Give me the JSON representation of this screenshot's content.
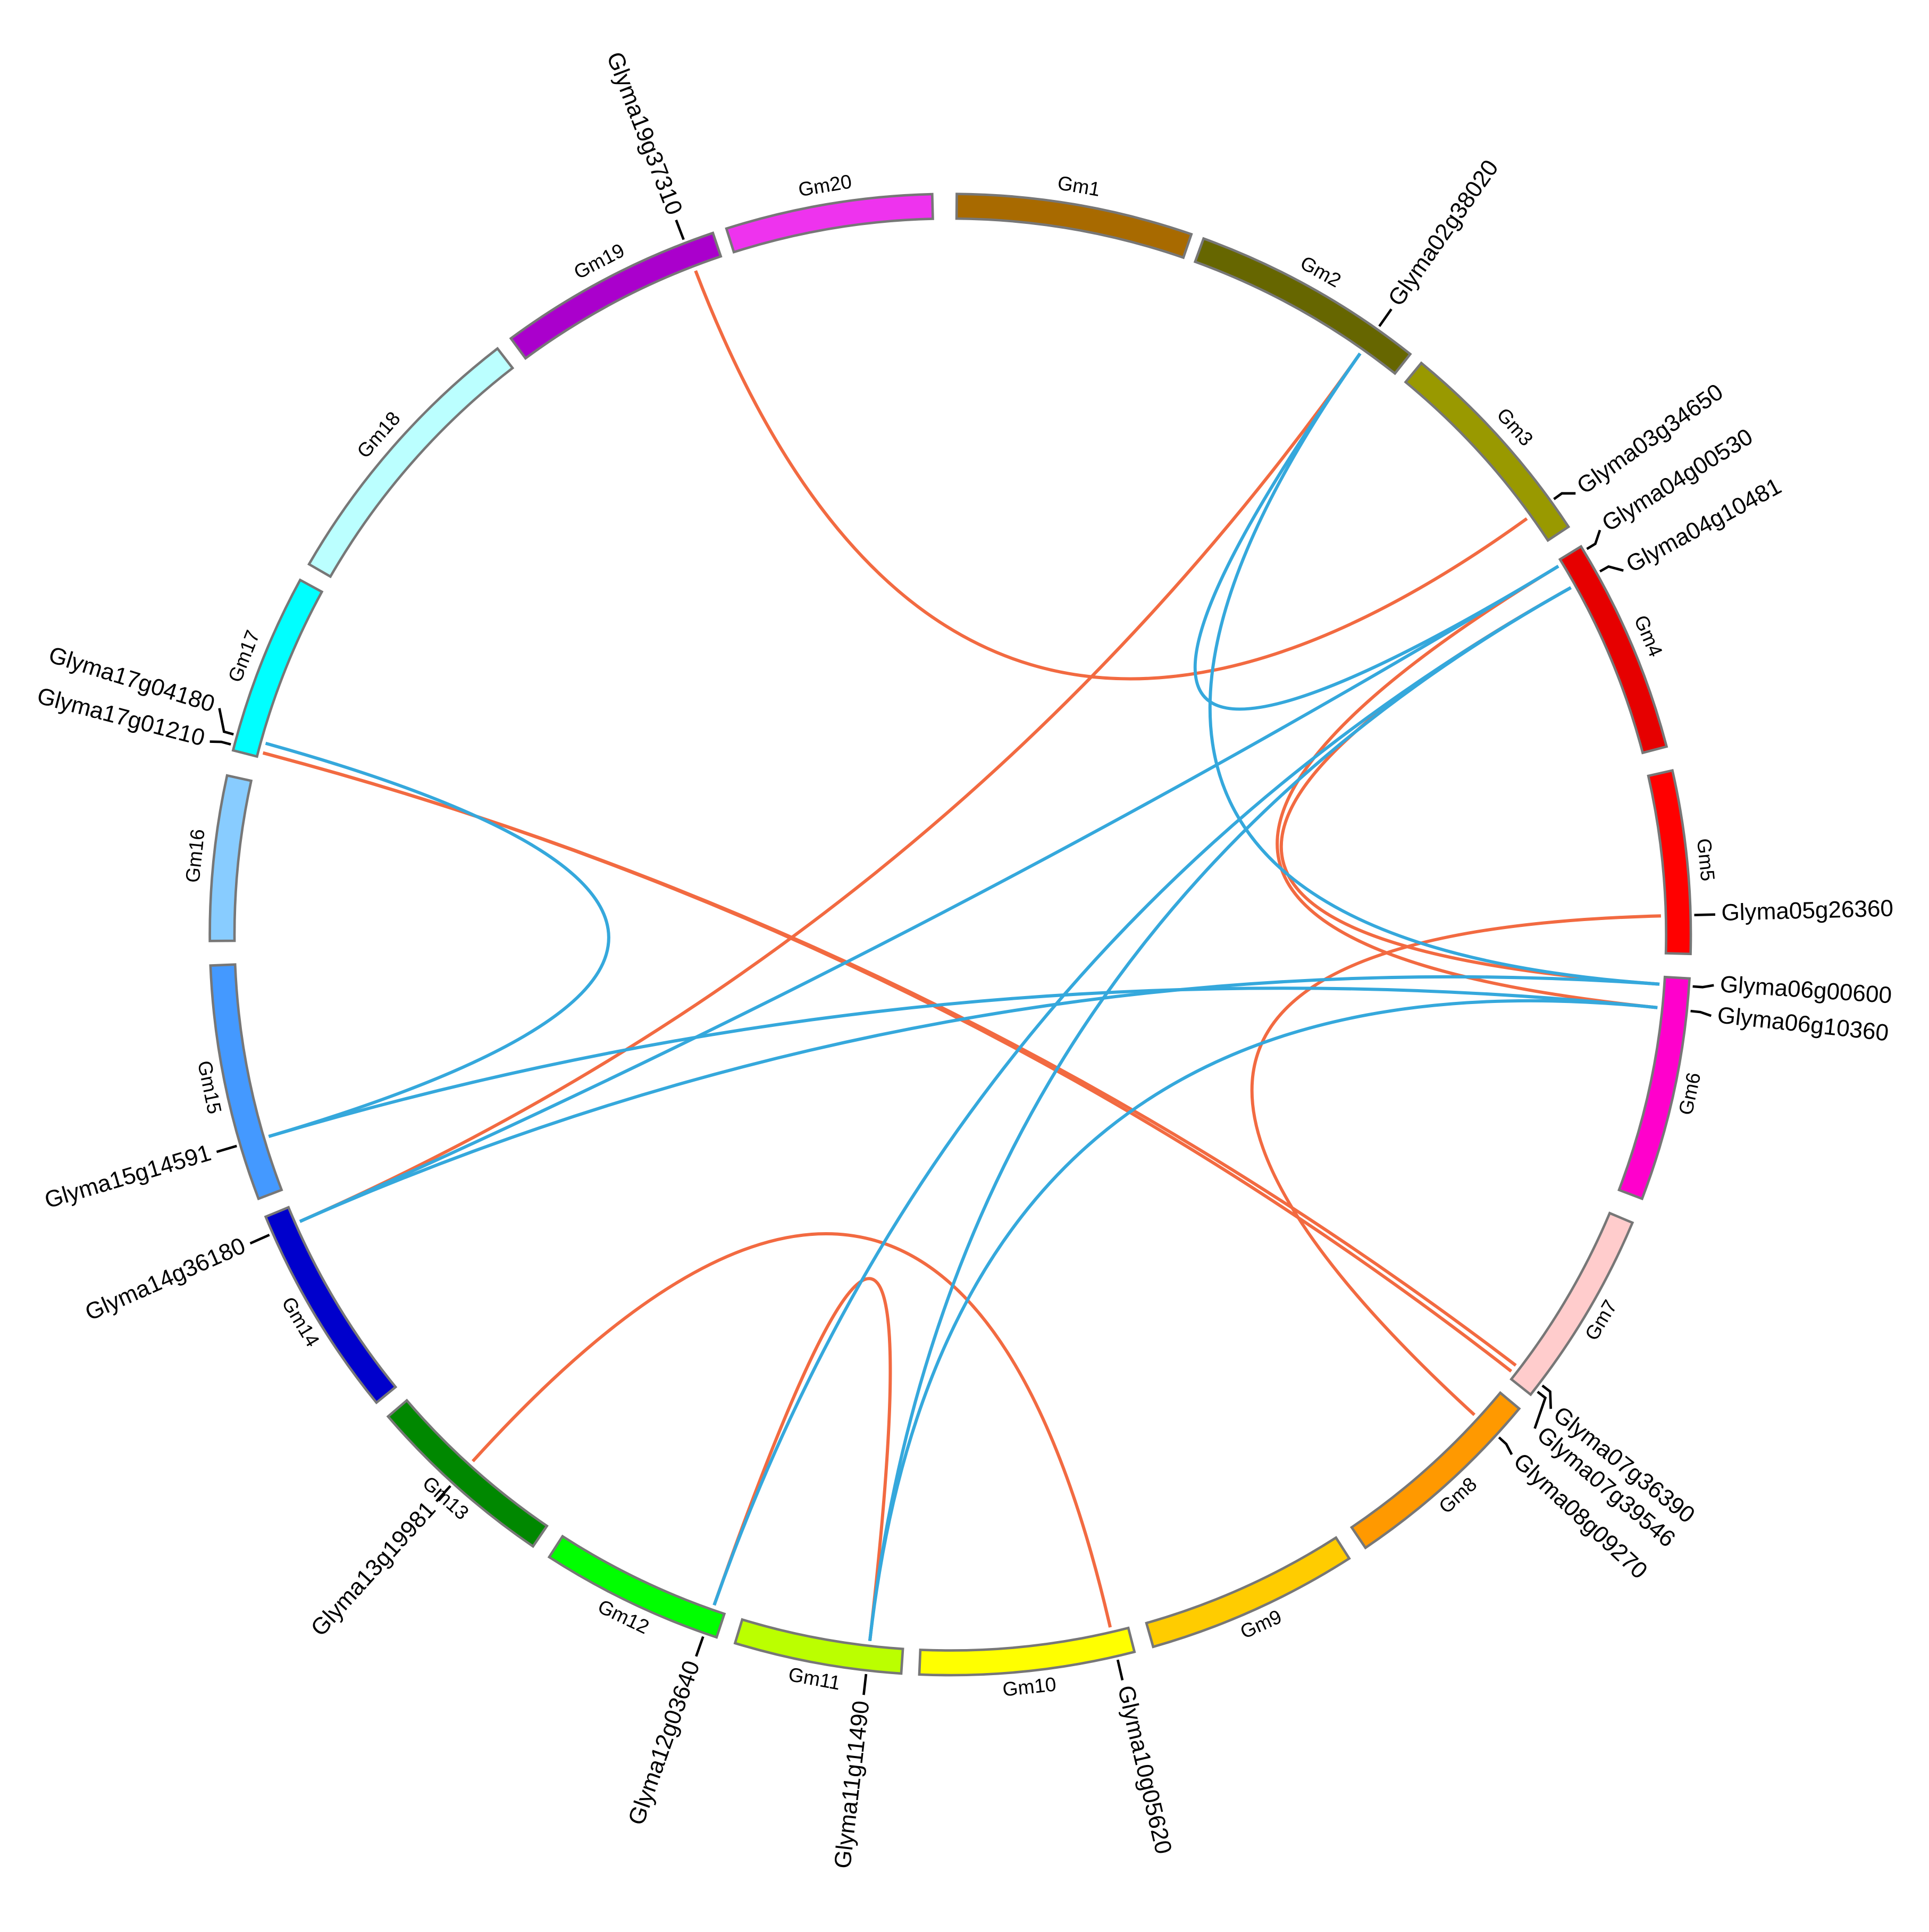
{
  "chromosomes": [
    {
      "label": "Gm1",
      "color": "#a86a00"
    },
    {
      "label": "Gm2",
      "color": "#666600"
    },
    {
      "label": "Gm3",
      "color": "#999900"
    },
    {
      "label": "Gm4",
      "color": "#e60000"
    },
    {
      "label": "Gm5",
      "color": "#ff0000"
    },
    {
      "label": "Gm6",
      "color": "#ff00cc"
    },
    {
      "label": "Gm7",
      "color": "#ffcccc"
    },
    {
      "label": "Gm8",
      "color": "#ff9900"
    },
    {
      "label": "Gm9",
      "color": "#ffcc00"
    },
    {
      "label": "Gm10",
      "color": "#ffff00"
    },
    {
      "label": "Gm11",
      "color": "#bbff00"
    },
    {
      "label": "Gm12",
      "color": "#00ff00"
    },
    {
      "label": "Gm13",
      "color": "#008800"
    },
    {
      "label": "Gm14",
      "color": "#0000cc"
    },
    {
      "label": "Gm15",
      "color": "#4499ff"
    },
    {
      "label": "Gm16",
      "color": "#88ccff"
    },
    {
      "label": "Gm17",
      "color": "#00ffff"
    },
    {
      "label": "Gm18",
      "color": "#bbffff"
    },
    {
      "label": "Gm19",
      "color": "#aa00cc"
    },
    {
      "label": "Gm20",
      "color": "#ee33ee"
    }
  ],
  "genes": [
    "Glyma02g38020",
    "Glyma03g34650",
    "Glyma04g00530",
    "Glyma04g10481",
    "Glyma05g26360",
    "Glyma06g00600",
    "Glyma06g10360",
    "Glyma07g36390",
    "Glyma07g39546",
    "Glyma08g09270",
    "Glyma10g05620",
    "Glyma11g11490",
    "Glyma12g03640",
    "Glyma13g19981",
    "Glyma14g36180",
    "Glyma15g14591",
    "Glyma17g01210",
    "Glyma17g04180",
    "Glyma19g37310"
  ]
}
